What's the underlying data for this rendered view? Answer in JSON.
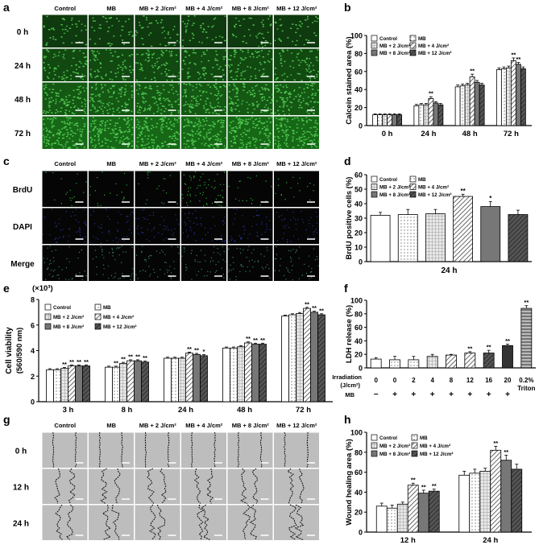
{
  "panel_letters": [
    "a",
    "b",
    "c",
    "d",
    "e",
    "f",
    "g",
    "h"
  ],
  "colors": {
    "calcein_green": "#1f9a1f",
    "brdu_green": "#2bbf3a",
    "dapi_blue": "#2a3aa8"
  },
  "panel_a": {
    "columns": [
      "Control",
      "MB",
      "MB + 2 J/cm²",
      "MB + 4 J/cm²",
      "MB + 8 J/cm²",
      "MB + 12 J/cm²"
    ],
    "rows": [
      "0 h",
      "24 h",
      "48 h",
      "72 h"
    ]
  },
  "panel_c": {
    "columns": [
      "Control",
      "MB",
      "MB + 2 J/cm²",
      "MB + 4 J/cm²",
      "MB + 8 J/cm²",
      "MB + 12 J/cm²"
    ],
    "rows": [
      "BrdU",
      "DAPI",
      "Merge"
    ]
  },
  "panel_g": {
    "columns": [
      "Control",
      "MB",
      "MB + 2 J/cm²",
      "MB + 4 J/cm²",
      "MB + 8 J/cm²",
      "MB + 12 J/cm²"
    ],
    "rows": [
      "0 h",
      "12 h",
      "24 h"
    ]
  },
  "legend_series": [
    "Control",
    "MB",
    "MB + 2 J/cm²",
    "MB + 4 J/cm²",
    "MB + 8 J/cm²",
    "MB + 12 J/cm²"
  ],
  "chart_data": [
    {
      "id": "b",
      "type": "bar",
      "ylabel": "Calcein stained area (%)",
      "ylim": [
        0,
        100
      ],
      "yticks": [
        0,
        20,
        40,
        60,
        80,
        100
      ],
      "categories": [
        "0 h",
        "24 h",
        "48 h",
        "72 h"
      ],
      "series": [
        {
          "name": "Control",
          "values": [
            12,
            22,
            43,
            62
          ]
        },
        {
          "name": "MB",
          "values": [
            12,
            23,
            44,
            63
          ]
        },
        {
          "name": "MB + 2 J/cm²",
          "values": [
            12,
            23,
            45,
            64
          ]
        },
        {
          "name": "MB + 4 J/cm²",
          "values": [
            12,
            30,
            54,
            72
          ]
        },
        {
          "name": "MB + 8 J/cm²",
          "values": [
            12,
            25,
            48,
            68
          ]
        },
        {
          "name": "MB + 12 J/cm²",
          "values": [
            12,
            23,
            45,
            63
          ]
        }
      ],
      "errors": [
        [
          1,
          1.5,
          2,
          2
        ],
        [
          1,
          1.5,
          2,
          2
        ],
        [
          1,
          1.5,
          2,
          2
        ],
        [
          1,
          2,
          3,
          3
        ],
        [
          1,
          1.5,
          2,
          2
        ],
        [
          1,
          1.5,
          2,
          2
        ]
      ],
      "annotations": [
        {
          "category": "24 h",
          "series": "MB + 4 J/cm²",
          "text": "**"
        },
        {
          "category": "48 h",
          "series": "MB + 4 J/cm²",
          "text": "**"
        },
        {
          "category": "72 h",
          "series": "MB + 4 J/cm²",
          "text": "**"
        },
        {
          "category": "72 h",
          "series": "MB + 8 J/cm²",
          "text": "**"
        }
      ],
      "legend": "top-left"
    },
    {
      "id": "d",
      "type": "bar",
      "ylabel": "BrdU positive cells (%)",
      "ylim": [
        0,
        60
      ],
      "yticks": [
        0,
        10,
        20,
        30,
        40,
        50,
        60
      ],
      "xlabel": "24 h",
      "categories": [
        "Control",
        "MB",
        "MB + 2 J/cm²",
        "MB + 4 J/cm²",
        "MB + 8 J/cm²",
        "MB + 12 J/cm²"
      ],
      "values": [
        32,
        32.5,
        33,
        45,
        38,
        32.5
      ],
      "errors": [
        2,
        3.5,
        3,
        1.5,
        3.5,
        3
      ],
      "annotations": [
        {
          "index": 3,
          "text": "**"
        },
        {
          "index": 4,
          "text": "*"
        }
      ],
      "legend": "top-left"
    },
    {
      "id": "e",
      "type": "bar",
      "ylabel_lines": [
        "Cell viability",
        "(560/590 nm)"
      ],
      "yunit": "(×10³)",
      "ylim": [
        0,
        8
      ],
      "yticks": [
        0,
        2,
        4,
        6,
        8
      ],
      "categories": [
        "3 h",
        "8 h",
        "24 h",
        "48 h",
        "72 h"
      ],
      "series": [
        {
          "name": "Control",
          "values": [
            2.5,
            2.7,
            3.4,
            4.2,
            6.7
          ]
        },
        {
          "name": "MB",
          "values": [
            2.5,
            2.7,
            3.4,
            4.2,
            6.8
          ]
        },
        {
          "name": "MB + 2 J/cm²",
          "values": [
            2.6,
            3.0,
            3.4,
            4.3,
            6.9
          ]
        },
        {
          "name": "MB + 4 J/cm²",
          "values": [
            2.8,
            3.2,
            3.8,
            4.6,
            7.3
          ]
        },
        {
          "name": "MB + 8 J/cm²",
          "values": [
            2.8,
            3.2,
            3.7,
            4.5,
            7.0
          ]
        },
        {
          "name": "MB + 12 J/cm²",
          "values": [
            2.8,
            3.1,
            3.6,
            4.5,
            6.8
          ]
        }
      ],
      "errors": 0.08,
      "annotations_text": [
        [
          "",
          "",
          "**",
          "**",
          "**",
          "**"
        ],
        [
          "",
          "**",
          "**",
          "**",
          "**",
          "**"
        ],
        [
          "",
          "",
          "",
          "**",
          "**",
          "*"
        ],
        [
          "",
          "",
          "",
          "**",
          "**",
          "**"
        ],
        [
          "",
          "",
          "",
          "**",
          "**",
          "**"
        ]
      ],
      "legend": "top-left"
    },
    {
      "id": "f",
      "type": "bar",
      "ylabel": "LDH release (%)",
      "ylim": [
        0,
        100
      ],
      "yticks": [
        0,
        20,
        40,
        60,
        80,
        100
      ],
      "categories": [
        "0",
        "0",
        "2",
        "4",
        "8",
        "12",
        "16",
        "20",
        "0.2%"
      ],
      "category_sub": [
        "",
        "",
        "",
        "",
        "",
        "",
        "",
        "",
        "Triton"
      ],
      "row_label_irradiation": "Irradiation",
      "row_label_unit": "(J/cm²)",
      "row_label_mb": "MB",
      "mb_marks": [
        "−",
        "+",
        "+",
        "+",
        "+",
        "+",
        "+",
        "+"
      ],
      "values": [
        13,
        12,
        12,
        17,
        19,
        22,
        22,
        33,
        88
      ],
      "errors": [
        2,
        5,
        5,
        3,
        1,
        2,
        4,
        2,
        4
      ],
      "annotations": [
        {
          "index": 5,
          "text": "**"
        },
        {
          "index": 6,
          "text": "**"
        },
        {
          "index": 7,
          "text": "**"
        },
        {
          "index": 8,
          "text": "**"
        }
      ]
    },
    {
      "id": "h",
      "type": "bar",
      "ylabel": "Wound healing area (%)",
      "ylim": [
        0,
        100
      ],
      "yticks": [
        0,
        20,
        40,
        60,
        80,
        100
      ],
      "categories": [
        "12 h",
        "24 h"
      ],
      "series": [
        {
          "name": "Control",
          "values": [
            26,
            57
          ]
        },
        {
          "name": "MB",
          "values": [
            24,
            59
          ]
        },
        {
          "name": "MB + 2 J/cm²",
          "values": [
            28,
            61
          ]
        },
        {
          "name": "MB + 4 J/cm²",
          "values": [
            47,
            82
          ]
        },
        {
          "name": "MB + 8 J/cm²",
          "values": [
            39,
            72
          ]
        },
        {
          "name": "MB + 12 J/cm²",
          "values": [
            41,
            63
          ]
        }
      ],
      "errors": [
        [
          3,
          4
        ],
        [
          3,
          4
        ],
        [
          2,
          3
        ],
        [
          2,
          4
        ],
        [
          3,
          5
        ],
        [
          2,
          5
        ]
      ],
      "annotations": [
        {
          "category": "12 h",
          "series": "MB + 4 J/cm²",
          "text": "**"
        },
        {
          "category": "12 h",
          "series": "MB + 8 J/cm²",
          "text": "**"
        },
        {
          "category": "12 h",
          "series": "MB + 12 J/cm²",
          "text": "**"
        },
        {
          "category": "24 h",
          "series": "MB + 4 J/cm²",
          "text": "**"
        },
        {
          "category": "24 h",
          "series": "MB + 8 J/cm²",
          "text": "**"
        }
      ],
      "legend": "top-left"
    }
  ]
}
